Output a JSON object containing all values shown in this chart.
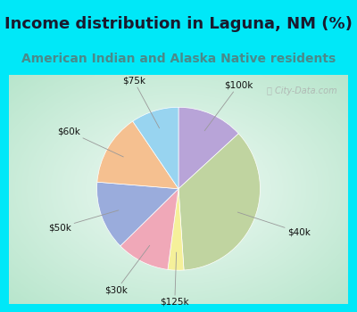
{
  "title": "Income distribution in Laguna, NM (%)",
  "subtitle": "American Indian and Alaska Native residents",
  "title_color": "#1a1a2e",
  "subtitle_color": "#4a8a8a",
  "outer_bg": "#00e8f8",
  "watermark": "City-Data.com",
  "slices": [
    {
      "label": "$100k",
      "value": 12.5,
      "color": "#b8a4d8"
    },
    {
      "label": "$40k",
      "value": 34.0,
      "color": "#c0d4a0"
    },
    {
      "label": "$125k",
      "value": 3.0,
      "color": "#f5f09a"
    },
    {
      "label": "$30k",
      "value": 10.0,
      "color": "#f0a8b8"
    },
    {
      "label": "$50k",
      "value": 13.0,
      "color": "#9aacdc"
    },
    {
      "label": "$60k",
      "value": 13.5,
      "color": "#f5c090"
    },
    {
      "label": "$75k",
      "value": 9.0,
      "color": "#98d4f0"
    }
  ],
  "startangle": 90,
  "title_fontsize": 13,
  "subtitle_fontsize": 10
}
